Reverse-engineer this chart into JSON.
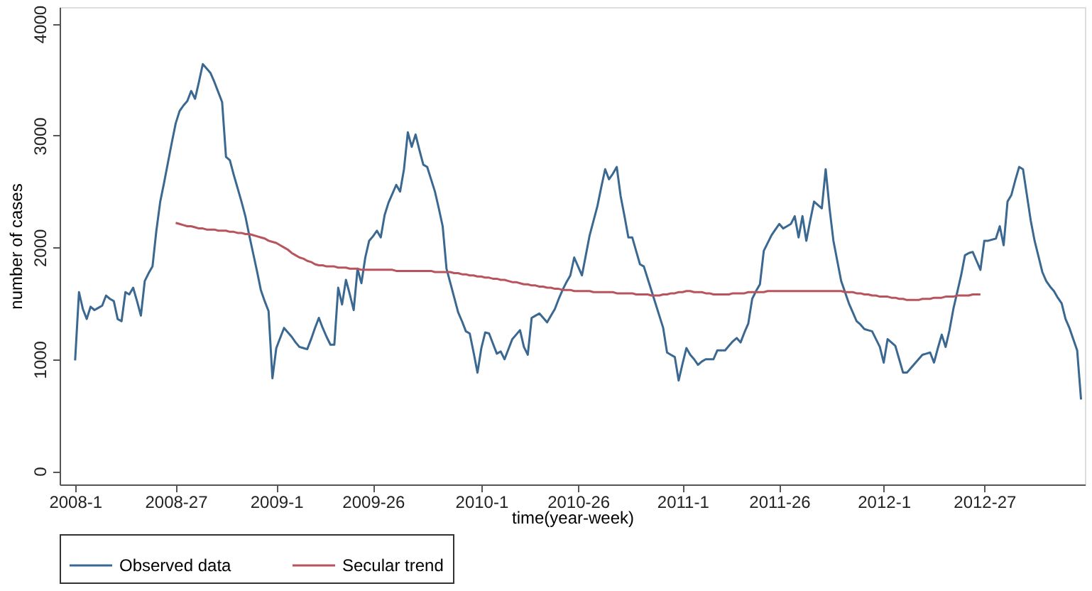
{
  "chart_data": {
    "type": "line",
    "xlabel": "time(year-week)",
    "ylabel": "number of cases",
    "ylim": [
      -120,
      4150
    ],
    "yticks": [
      0,
      1000,
      2000,
      3000,
      4000
    ],
    "grid": false,
    "legend": "bottom",
    "marker": "none",
    "line_style": "solid",
    "categories": [
      "2008-1",
      null,
      null,
      null,
      null,
      null,
      null,
      null,
      null,
      null,
      null,
      null,
      null,
      null,
      null,
      null,
      null,
      null,
      null,
      null,
      null,
      null,
      null,
      null,
      null,
      null,
      "2008-27",
      null,
      null,
      null,
      null,
      null,
      null,
      null,
      null,
      null,
      null,
      null,
      null,
      null,
      null,
      null,
      null,
      null,
      null,
      null,
      null,
      null,
      null,
      null,
      null,
      null,
      "2009-1",
      null,
      null,
      null,
      null,
      null,
      null,
      null,
      null,
      null,
      null,
      null,
      null,
      null,
      null,
      null,
      null,
      null,
      null,
      null,
      null,
      null,
      null,
      null,
      null,
      "2009-26",
      null,
      null,
      null,
      null,
      null,
      null,
      null,
      null,
      null,
      null,
      null,
      null,
      null,
      null,
      null,
      null,
      null,
      null,
      null,
      null,
      null,
      null,
      null,
      null,
      null,
      null,
      null,
      "2010-1",
      null,
      null,
      null,
      null,
      null,
      null,
      null,
      null,
      null,
      null,
      null,
      null,
      null,
      null,
      null,
      null,
      null,
      null,
      null,
      null,
      null,
      null,
      null,
      null,
      "2010-26",
      null,
      null,
      null,
      null,
      null,
      null,
      null,
      null,
      null,
      null,
      null,
      null,
      null,
      null,
      null,
      null,
      null,
      null,
      null,
      null,
      null,
      null,
      null,
      null,
      null,
      null,
      "2011-1",
      null,
      null,
      null,
      null,
      null,
      null,
      null,
      null,
      null,
      null,
      null,
      null,
      null,
      null,
      null,
      null,
      null,
      null,
      null,
      null,
      null,
      null,
      null,
      null,
      "2011-26",
      null,
      null,
      null,
      null,
      null,
      null,
      null,
      null,
      null,
      null,
      null,
      null,
      null,
      null,
      null,
      null,
      null,
      null,
      null,
      null,
      null,
      null,
      null,
      null,
      null,
      null,
      "2012-1",
      null,
      null,
      null,
      null,
      null,
      null,
      null,
      null,
      null,
      null,
      null,
      null,
      null,
      null,
      null,
      null,
      null,
      null,
      null,
      null,
      null,
      null,
      null,
      null,
      null,
      "2012-27",
      null,
      null,
      null,
      null,
      null,
      null,
      null,
      null,
      null,
      null,
      null,
      null,
      null,
      null,
      null,
      null,
      null,
      null,
      null,
      null,
      null,
      null,
      null,
      null,
      null
    ],
    "series": [
      {
        "name": "Observed data",
        "color": "#3a6891",
        "values": [
          990,
          1600,
          1450,
          1360,
          1470,
          1440,
          1460,
          1480,
          1570,
          1540,
          1520,
          1360,
          1340,
          1600,
          1580,
          1640,
          1520,
          1390,
          1700,
          1770,
          1830,
          2150,
          2410,
          2580,
          2760,
          2940,
          3110,
          3220,
          3270,
          3310,
          3400,
          3330,
          3480,
          3640,
          3600,
          3560,
          3480,
          3390,
          3300,
          2810,
          2780,
          2650,
          2530,
          2410,
          2280,
          2110,
          1950,
          1790,
          1620,
          1520,
          1430,
          830,
          1100,
          1190,
          1280,
          1240,
          1200,
          1150,
          1110,
          1100,
          1090,
          1180,
          1280,
          1370,
          1280,
          1200,
          1130,
          1130,
          1640,
          1490,
          1710,
          1580,
          1440,
          1810,
          1680,
          1910,
          2060,
          2100,
          2150,
          2090,
          2290,
          2400,
          2480,
          2560,
          2500,
          2700,
          3030,
          2900,
          3010,
          2870,
          2740,
          2720,
          2610,
          2500,
          2350,
          2190,
          1810,
          1680,
          1550,
          1420,
          1340,
          1250,
          1230,
          1060,
          880,
          1100,
          1240,
          1230,
          1140,
          1050,
          1070,
          1000,
          1090,
          1180,
          1220,
          1260,
          1110,
          1040,
          1370,
          1390,
          1410,
          1370,
          1330,
          1390,
          1450,
          1540,
          1620,
          1690,
          1750,
          1910,
          1830,
          1750,
          1930,
          2110,
          2240,
          2370,
          2540,
          2700,
          2610,
          2660,
          2720,
          2460,
          2280,
          2090,
          2090,
          1970,
          1850,
          1830,
          1720,
          1610,
          1500,
          1390,
          1280,
          1060,
          1040,
          1020,
          810,
          960,
          1100,
          1040,
          1000,
          950,
          980,
          1000,
          1000,
          1000,
          1080,
          1080,
          1080,
          1120,
          1160,
          1190,
          1150,
          1240,
          1320,
          1540,
          1610,
          1670,
          1970,
          2040,
          2110,
          2160,
          2210,
          2170,
          2190,
          2210,
          2280,
          2090,
          2280,
          2060,
          2240,
          2410,
          2380,
          2350,
          2700,
          2350,
          2060,
          1880,
          1700,
          1600,
          1500,
          1420,
          1340,
          1310,
          1270,
          1260,
          1250,
          1180,
          1110,
          970,
          1180,
          1150,
          1120,
          1000,
          880,
          880,
          920,
          960,
          1000,
          1040,
          1050,
          1060,
          970,
          1100,
          1220,
          1110,
          1260,
          1450,
          1600,
          1750,
          1930,
          1950,
          1960,
          1880,
          1800,
          2060,
          2060,
          2070,
          2080,
          2190,
          2020,
          2410,
          2470,
          2600,
          2720,
          2700,
          2470,
          2240,
          2060,
          1920,
          1780,
          1700,
          1650,
          1610,
          1550,
          1500,
          1360,
          1280,
          1180,
          1080,
          640
        ]
      },
      {
        "name": "Secular trend",
        "color": "#b8545e",
        "values": [
          null,
          null,
          null,
          null,
          null,
          null,
          null,
          null,
          null,
          null,
          null,
          null,
          null,
          null,
          null,
          null,
          null,
          null,
          null,
          null,
          null,
          null,
          null,
          null,
          null,
          null,
          2220,
          2210,
          2200,
          2190,
          2190,
          2180,
          2170,
          2170,
          2160,
          2160,
          2160,
          2150,
          2150,
          2150,
          2140,
          2140,
          2130,
          2130,
          2120,
          2120,
          2110,
          2100,
          2090,
          2080,
          2060,
          2050,
          2040,
          2020,
          2000,
          1980,
          1950,
          1930,
          1910,
          1900,
          1880,
          1870,
          1850,
          1840,
          1840,
          1830,
          1830,
          1830,
          1820,
          1820,
          1820,
          1810,
          1810,
          1810,
          1800,
          1800,
          1800,
          1800,
          1800,
          1800,
          1800,
          1800,
          1800,
          1790,
          1790,
          1790,
          1790,
          1790,
          1790,
          1790,
          1790,
          1790,
          1790,
          1780,
          1780,
          1780,
          1780,
          1780,
          1770,
          1770,
          1760,
          1760,
          1750,
          1750,
          1740,
          1740,
          1730,
          1730,
          1720,
          1720,
          1710,
          1710,
          1700,
          1690,
          1690,
          1680,
          1670,
          1670,
          1660,
          1660,
          1650,
          1650,
          1640,
          1640,
          1630,
          1630,
          1620,
          1620,
          1620,
          1610,
          1610,
          1610,
          1610,
          1610,
          1600,
          1600,
          1600,
          1600,
          1600,
          1600,
          1590,
          1590,
          1590,
          1590,
          1590,
          1580,
          1580,
          1580,
          1580,
          1570,
          1570,
          1570,
          1580,
          1580,
          1590,
          1590,
          1600,
          1600,
          1610,
          1610,
          1600,
          1600,
          1600,
          1590,
          1590,
          1580,
          1580,
          1580,
          1580,
          1580,
          1590,
          1590,
          1590,
          1590,
          1600,
          1600,
          1600,
          1600,
          1600,
          1610,
          1610,
          1610,
          1610,
          1610,
          1610,
          1610,
          1610,
          1610,
          1610,
          1610,
          1610,
          1610,
          1610,
          1610,
          1610,
          1610,
          1610,
          1610,
          1610,
          1600,
          1600,
          1600,
          1590,
          1590,
          1580,
          1580,
          1570,
          1570,
          1560,
          1560,
          1560,
          1550,
          1550,
          1540,
          1540,
          1530,
          1530,
          1530,
          1530,
          1540,
          1540,
          1540,
          1550,
          1550,
          1550,
          1560,
          1560,
          1560,
          1570,
          1570,
          1570,
          1570,
          1580,
          1580,
          1580,
          null,
          null,
          null,
          null,
          null,
          null,
          null,
          null,
          null,
          null,
          null,
          null,
          null,
          null,
          null,
          null,
          null,
          null,
          null,
          null,
          null,
          null,
          null,
          null,
          null,
          null
        ]
      }
    ]
  }
}
